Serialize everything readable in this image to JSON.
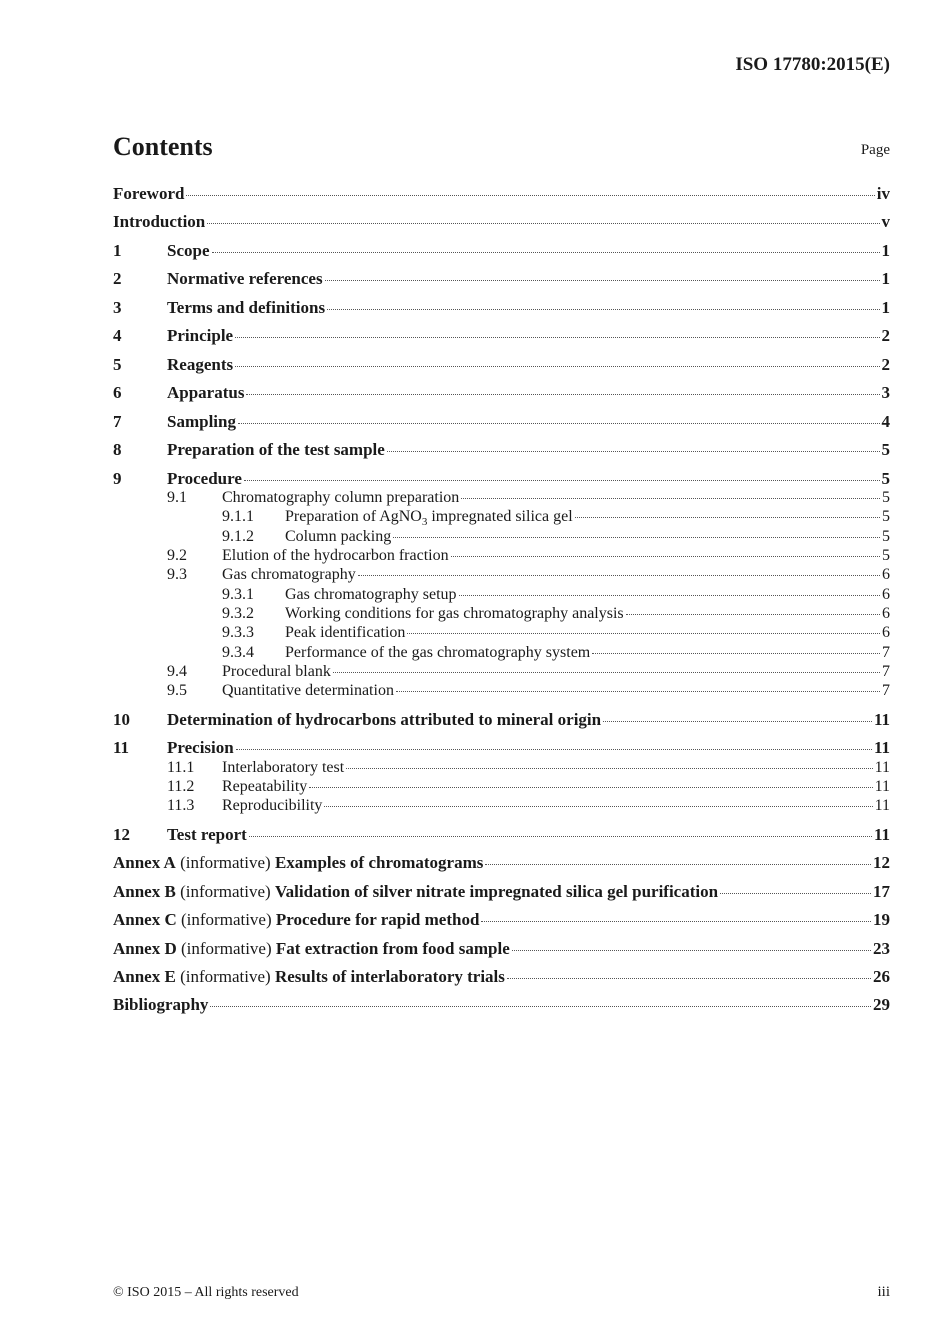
{
  "header": {
    "doc_id": "ISO 17780:2015(E)"
  },
  "title": "Contents",
  "page_label": "Page",
  "entries": [
    {
      "level": 0,
      "num": "",
      "title": "Foreword",
      "page": "iv"
    },
    {
      "level": 0,
      "num": "",
      "title": "Introduction",
      "page": "v"
    },
    {
      "level": 0,
      "num": "1",
      "title": "Scope",
      "page": "1"
    },
    {
      "level": 0,
      "num": "2",
      "title": "Normative references",
      "page": "1"
    },
    {
      "level": 0,
      "num": "3",
      "title": "Terms and definitions",
      "page": "1"
    },
    {
      "level": 0,
      "num": "4",
      "title": "Principle",
      "page": "2"
    },
    {
      "level": 0,
      "num": "5",
      "title": "Reagents",
      "page": "2"
    },
    {
      "level": 0,
      "num": "6",
      "title": "Apparatus",
      "page": "3"
    },
    {
      "level": 0,
      "num": "7",
      "title": "Sampling",
      "page": "4"
    },
    {
      "level": 0,
      "num": "8",
      "title": "Preparation of the test sample",
      "page": "5"
    },
    {
      "level": 0,
      "num": "9",
      "title": "Procedure",
      "page": "5"
    },
    {
      "level": 1,
      "num": "9.1",
      "title": "Chromatography column preparation",
      "page": "5"
    },
    {
      "level": 2,
      "num": "9.1.1",
      "title": "Preparation of AgNO",
      "sub": "3",
      "title_after": " impregnated silica gel",
      "page": "5"
    },
    {
      "level": 2,
      "num": "9.1.2",
      "title": "Column packing",
      "page": "5"
    },
    {
      "level": 1,
      "num": "9.2",
      "title": "Elution of the hydrocarbon fraction",
      "page": "5"
    },
    {
      "level": 1,
      "num": "9.3",
      "title": "Gas chromatography",
      "page": "6"
    },
    {
      "level": 2,
      "num": "9.3.1",
      "title": "Gas chromatography setup",
      "page": "6"
    },
    {
      "level": 2,
      "num": "9.3.2",
      "title": "Working conditions for gas chromatography analysis",
      "page": "6"
    },
    {
      "level": 2,
      "num": "9.3.3",
      "title": "Peak identification",
      "page": "6"
    },
    {
      "level": 2,
      "num": "9.3.4",
      "title": "Performance of the gas chromatography system",
      "page": "7"
    },
    {
      "level": 1,
      "num": "9.4",
      "title": "Procedural blank",
      "page": "7"
    },
    {
      "level": 1,
      "num": "9.5",
      "title": "Quantitative determination",
      "page": "7"
    },
    {
      "level": 0,
      "num": "10",
      "title": "Determination of hydrocarbons attributed to mineral origin",
      "page": "11"
    },
    {
      "level": 0,
      "num": "11",
      "title": "Precision",
      "page": "11"
    },
    {
      "level": 1,
      "num": "11.1",
      "title": "Interlaboratory test",
      "page": "11"
    },
    {
      "level": 1,
      "num": "11.2",
      "title": "Repeatability",
      "page": "11"
    },
    {
      "level": 1,
      "num": "11.3",
      "title": "Reproducibility",
      "page": "11"
    },
    {
      "level": 0,
      "num": "12",
      "title": "Test report",
      "page": "11"
    },
    {
      "level": 0,
      "num": "",
      "annex": "Annex A",
      "note": " (informative) ",
      "title": "Examples of chromatograms",
      "page": "12"
    },
    {
      "level": 0,
      "num": "",
      "annex": "Annex B",
      "note": " (informative) ",
      "title": "Validation of silver nitrate impregnated silica gel purification",
      "page": "17"
    },
    {
      "level": 0,
      "num": "",
      "annex": "Annex C",
      "note": " (informative) ",
      "title": "Procedure for rapid method",
      "page": "19"
    },
    {
      "level": 0,
      "num": "",
      "annex": "Annex D",
      "note": " (informative) ",
      "title": "Fat extraction from food sample",
      "page": "23"
    },
    {
      "level": 0,
      "num": "",
      "annex": "Annex E",
      "note": " (informative) ",
      "title": "Results of interlaboratory trials",
      "page": "26"
    },
    {
      "level": 0,
      "num": "",
      "title": "Bibliography",
      "page": "29"
    }
  ],
  "footer": {
    "copyright": "© ISO 2015 – All rights reserved",
    "page": "iii"
  }
}
